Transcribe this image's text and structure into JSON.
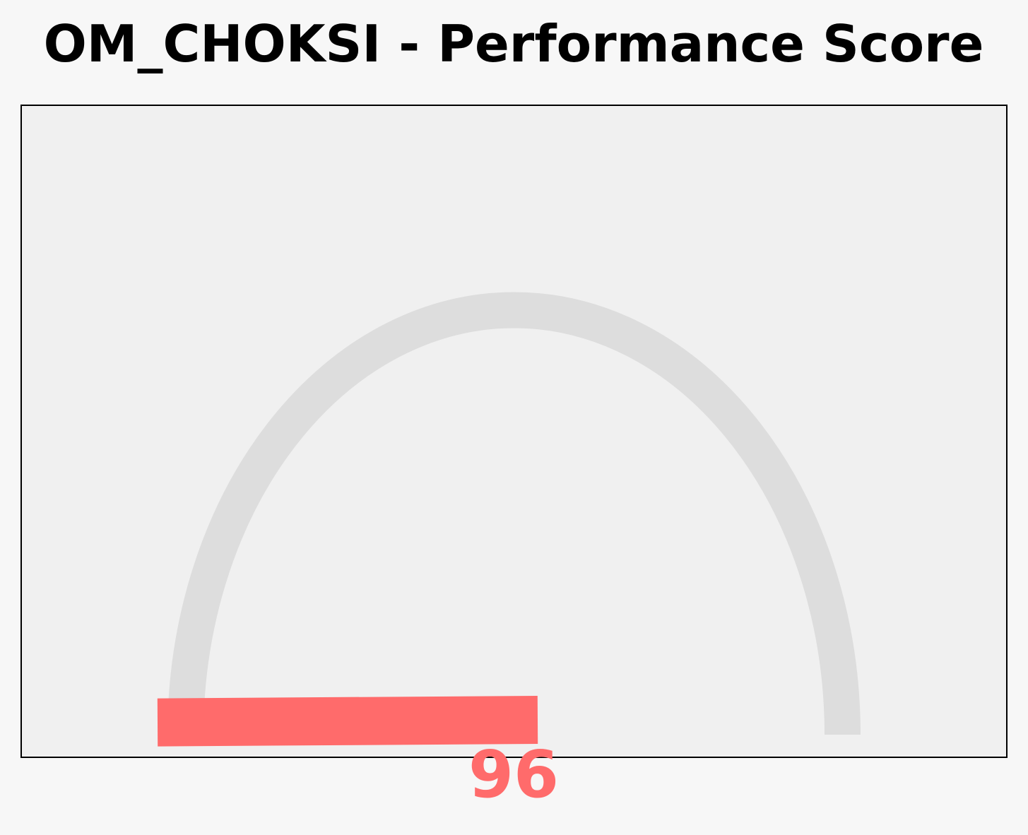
{
  "chart_data": {
    "type": "gauge",
    "title": "OM_CHOKSI - Performance Score",
    "value": 96,
    "value_label": "96",
    "range": [
      0,
      100
    ],
    "colors": {
      "page_background": "#f7f7f7",
      "plot_background": "#f0f0f0",
      "plot_border": "#000000",
      "track": "#dddddd",
      "needle": "#ff6b6b",
      "value_text": "#ff6b6b",
      "title_text": "#000000"
    }
  }
}
